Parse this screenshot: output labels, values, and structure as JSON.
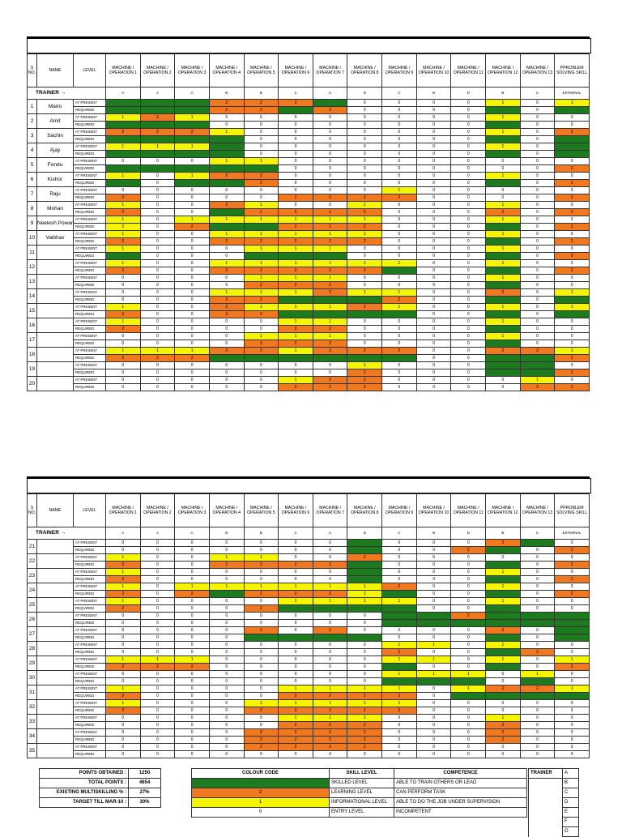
{
  "header": {
    "sno": "S NO.",
    "name": "NAME",
    "level": "LEVEL",
    "columns": [
      "MACHINE / OPERATION 1",
      "MACHINE / OPERATION 2",
      "MACHINE / OPERATION 3",
      "MACHINE / OPERATION 4",
      "MACHINE / OPERATION 5",
      "MACHINE / OPERATION 6",
      "MACHINE / OPERATION 7",
      "MACHINE / OPERATION 8",
      "MACHINE / OPERATION 9",
      "MACHINE / OPERATION 10",
      "MACHINE / OPERATION 11",
      "MACHINE / OPERATION 12",
      "MACHINE / OPERATION 13",
      "PPROBLEM SOLVING SKILL"
    ]
  },
  "trainer_row": {
    "label": "TRAINER →",
    "values": [
      "A",
      "A",
      "A",
      "B",
      "B",
      "C",
      "C",
      "D",
      "C",
      "B",
      "D",
      "B",
      "C",
      "EXTERNAL"
    ]
  },
  "level_labels": {
    "present": "AT PRESENT",
    "required": "REQUIRED"
  },
  "table1": [
    {
      "no": "1",
      "name": "Mario",
      "p": [
        "g",
        "g",
        "g",
        "o:2",
        "o:2",
        "o:2",
        "g",
        "0",
        "0",
        "0",
        "0",
        "y:1",
        "0",
        "y:1"
      ],
      "r": [
        "g",
        "g",
        "g",
        "o:2",
        "o:2",
        "g",
        "o:2",
        "0",
        "0",
        "0",
        "0",
        "g",
        "0",
        "g"
      ]
    },
    {
      "no": "2",
      "name": "Amit",
      "p": [
        "y:1",
        "o:2",
        "y:1",
        "0",
        "0",
        "0",
        "0",
        "0",
        "0",
        "0",
        "0",
        "y:1",
        "0",
        "0"
      ],
      "r": [
        "g",
        "g",
        "g",
        "0",
        "0",
        "0",
        "0",
        "0",
        "0",
        "0",
        "0",
        "g",
        "0",
        "0"
      ]
    },
    {
      "no": "3",
      "name": "Sachin",
      "p": [
        "o:2",
        "o:2",
        "o:2",
        "y:1",
        "0",
        "0",
        "0",
        "0",
        "0",
        "0",
        "0",
        "y:1",
        "0",
        "o:2"
      ],
      "r": [
        "g",
        "g",
        "g",
        "g",
        "0",
        "0",
        "0",
        "0",
        "0",
        "0",
        "0",
        "g",
        "0",
        "g"
      ]
    },
    {
      "no": "4",
      "name": "Ajay",
      "p": [
        "y:1",
        "y:1",
        "y:1",
        "g",
        "0",
        "0",
        "0",
        "0",
        "0",
        "0",
        "0",
        "y:1",
        "0",
        "g"
      ],
      "r": [
        "g",
        "g",
        "g",
        "g",
        "0",
        "0",
        "0",
        "0",
        "0",
        "0",
        "0",
        "g",
        "0",
        "g"
      ]
    },
    {
      "no": "5",
      "name": "Fondu",
      "p": [
        "0",
        "0",
        "0",
        "y:1",
        "y:1",
        "0",
        "0",
        "0",
        "0",
        "0",
        "0",
        "0",
        "0",
        "0"
      ],
      "r": [
        "g",
        "g",
        "g",
        "g",
        "g",
        "0",
        "0",
        "0",
        "0",
        "0",
        "0",
        "0",
        "0",
        "o:2"
      ]
    },
    {
      "no": "6",
      "name": "Kishor",
      "p": [
        "y:1",
        "0",
        "y:1",
        "o:2",
        "o:2",
        "0",
        "0",
        "0",
        "0",
        "0",
        "0",
        "y:1",
        "0",
        "0"
      ],
      "r": [
        "g",
        "0",
        "g",
        "g",
        "o:2",
        "0",
        "0",
        "0",
        "0",
        "0",
        "0",
        "g",
        "0",
        "o:2"
      ]
    },
    {
      "no": "7",
      "name": "Raju",
      "p": [
        "0",
        "0",
        "0",
        "0",
        "0",
        "0",
        "0",
        "0",
        "y:1",
        "0",
        "0",
        "0",
        "0",
        "0"
      ],
      "r": [
        "o:2",
        "0",
        "0",
        "0",
        "0",
        "o:2",
        "o:2",
        "o:2",
        "o:2",
        "0",
        "0",
        "0",
        "0",
        "o:2"
      ]
    },
    {
      "no": "8",
      "name": "Mohan",
      "p": [
        "y:1",
        "0",
        "0",
        "o:2",
        "y:1",
        "0",
        "0",
        "y:1",
        "0",
        "0",
        "0",
        "y:1",
        "0",
        "0"
      ],
      "r": [
        "o:2",
        "0",
        "0",
        "g",
        "o:2",
        "o:2",
        "o:2",
        "o:2",
        "0",
        "0",
        "0",
        "o:2",
        "0",
        "o:2"
      ]
    },
    {
      "no": "9",
      "name": "Neelesh Powar",
      "p": [
        "y:1",
        "0",
        "y:1",
        "y:1",
        "y:1",
        "y:1",
        "y:1",
        "y:1",
        "0",
        "0",
        "0",
        "y:1",
        "0",
        "0"
      ],
      "r": [
        "y:2",
        "0",
        "o:2",
        "g",
        "g",
        "o:2",
        "o:2",
        "o:2",
        "0",
        "0",
        "0",
        "g",
        "0",
        "o:2"
      ]
    },
    {
      "no": "10",
      "name": "Vaibhav",
      "p": [
        "y:1",
        "0",
        "0",
        "y:1",
        "y:1",
        "y:1",
        "y:1",
        "y:1",
        "0",
        "0",
        "0",
        "y:1",
        "0",
        "0"
      ],
      "r": [
        "o:2",
        "0",
        "0",
        "o:2",
        "o:2",
        "o:2",
        "o:2",
        "o:2",
        "0",
        "0",
        "0",
        "g",
        "0",
        "o:2"
      ]
    },
    {
      "no": "11",
      "name": "",
      "p": [
        "y:1",
        "0",
        "0",
        "0",
        "y:1",
        "y:1",
        "y:1",
        "0",
        "0",
        "0",
        "0",
        "y:1",
        "0",
        "0"
      ],
      "r": [
        "g",
        "0",
        "0",
        "0",
        "g",
        "g",
        "g",
        "0",
        "0",
        "0",
        "0",
        "g",
        "0",
        "o:2"
      ]
    },
    {
      "no": "12",
      "name": "",
      "p": [
        "y:1",
        "0",
        "0",
        "y:1",
        "y:1",
        "y:1",
        "y:1",
        "y:1",
        "y:1",
        "0",
        "0",
        "y:1",
        "0",
        "0"
      ],
      "r": [
        "o:2",
        "0",
        "0",
        "o:2",
        "o:2",
        "o:2",
        "o:2",
        "o:2",
        "g",
        "0",
        "0",
        "g",
        "0",
        "o:2"
      ]
    },
    {
      "no": "13",
      "name": "",
      "p": [
        "0",
        "0",
        "0",
        "0",
        "y:1",
        "y:1",
        "y:1",
        "0",
        "0",
        "0",
        "0",
        "y:1",
        "0",
        "0"
      ],
      "r": [
        "0",
        "0",
        "0",
        "0",
        "o:2",
        "o:2",
        "o:2",
        "0",
        "0",
        "0",
        "0",
        "g",
        "0",
        "0"
      ]
    },
    {
      "no": "14",
      "name": "",
      "p": [
        "0",
        "0",
        "0",
        "y:1",
        "y:1",
        "y:1",
        "o:2",
        "y:1",
        "y:1",
        "0",
        "0",
        "o:2",
        "0",
        "y:1"
      ],
      "r": [
        "0",
        "0",
        "0",
        "o:2",
        "o:2",
        "g",
        "g",
        "g",
        "o:2",
        "0",
        "0",
        "g",
        "0",
        "g"
      ]
    },
    {
      "no": "15",
      "name": "",
      "p": [
        "y:1",
        "0",
        "0",
        "o:2",
        "y:1",
        "y:1",
        "y:1",
        "o:2",
        "y:1",
        "0",
        "0",
        "y:1",
        "0",
        "y:1"
      ],
      "r": [
        "o:2",
        "0",
        "0",
        "o:2",
        "o:2",
        "g",
        "g",
        "g",
        "g",
        "0",
        "0",
        "g",
        "0",
        "g"
      ]
    },
    {
      "no": "16",
      "name": "",
      "p": [
        "y:1",
        "0",
        "0",
        "0",
        "0",
        "y:1",
        "y:1",
        "0",
        "0",
        "0",
        "0",
        "y:1",
        "0",
        "0"
      ],
      "r": [
        "o:2",
        "0",
        "0",
        "0",
        "0",
        "o:2",
        "o:2",
        "0",
        "0",
        "0",
        "0",
        "g",
        "0",
        "0"
      ]
    },
    {
      "no": "17",
      "name": "",
      "p": [
        "0",
        "0",
        "0",
        "0",
        "y:1",
        "y:1",
        "y:1",
        "0",
        "0",
        "0",
        "0",
        "y:1",
        "0",
        "0"
      ],
      "r": [
        "0",
        "0",
        "0",
        "0",
        "o:2",
        "o:2",
        "o:2",
        "0",
        "0",
        "0",
        "0",
        "g",
        "0",
        "0"
      ]
    },
    {
      "no": "18",
      "name": "",
      "p": [
        "y:1",
        "y:1",
        "y:1",
        "o:2",
        "o:2",
        "y:1",
        "o:2",
        "o:2",
        "o:2",
        "0",
        "0",
        "o:2",
        "o:2",
        "y:1"
      ],
      "r": [
        "o:2",
        "o:2",
        "o:2",
        "g",
        "g",
        "g",
        "g",
        "g",
        "g",
        "0",
        "0",
        "g",
        "g",
        "o:2"
      ]
    },
    {
      "no": "19",
      "name": "",
      "p": [
        "0",
        "0",
        "0",
        "0",
        "0",
        "0",
        "0",
        "y:1",
        "0",
        "0",
        "0",
        "g",
        "g",
        "0"
      ],
      "r": [
        "0",
        "0",
        "0",
        "0",
        "0",
        "0",
        "0",
        "o:2",
        "0",
        "0",
        "0",
        "g",
        "g",
        "o:2"
      ]
    },
    {
      "no": "20",
      "name": "",
      "p": [
        "0",
        "0",
        "0",
        "0",
        "0",
        "y:1",
        "o:2",
        "o:2",
        "0",
        "0",
        "0",
        "0",
        "y:1",
        "0"
      ],
      "r": [
        "0",
        "0",
        "0",
        "0",
        "0",
        "o:2",
        "o:2",
        "o:2",
        "0",
        "0",
        "0",
        "0",
        "o:2",
        "o:2"
      ]
    }
  ],
  "table2": [
    {
      "no": "21",
      "name": "",
      "p": [
        "0",
        "0",
        "0",
        "0",
        "0",
        "0",
        "0",
        "g",
        "0",
        "0",
        "0",
        "o:2",
        "g",
        "0"
      ],
      "r": [
        "0",
        "0",
        "0",
        "0",
        "0",
        "0",
        "0",
        "g",
        "0",
        "0",
        "o:2",
        "g",
        "0",
        "o:2"
      ]
    },
    {
      "no": "22",
      "name": "",
      "p": [
        "y:1",
        "0",
        "0",
        "y:1",
        "y:1",
        "0",
        "0",
        "o:2",
        "0",
        "0",
        "0",
        "0",
        "0",
        "0"
      ],
      "r": [
        "o:2",
        "0",
        "0",
        "o:2",
        "o:2",
        "o:2",
        "o:2",
        "g",
        "0",
        "0",
        "0",
        "g",
        "0",
        "o:2"
      ]
    },
    {
      "no": "23",
      "name": "",
      "p": [
        "y:1",
        "0",
        "0",
        "0",
        "0",
        "0",
        "0",
        "g",
        "0",
        "0",
        "0",
        "y:1",
        "0",
        "0"
      ],
      "r": [
        "o:2",
        "0",
        "0",
        "0",
        "0",
        "0",
        "0",
        "g",
        "0",
        "0",
        "0",
        "g",
        "0",
        "o:2"
      ]
    },
    {
      "no": "24",
      "name": "",
      "p": [
        "y:1",
        "0",
        "y:1",
        "y:1",
        "y:1",
        "y:1",
        "y:1",
        "y:1",
        "o:2",
        "0",
        "0",
        "y:1",
        "0",
        "0"
      ],
      "r": [
        "o:2",
        "0",
        "o:2",
        "g",
        "o:2",
        "o:2",
        "o:2",
        "y:1",
        "g",
        "0",
        "0",
        "g",
        "0",
        "o:2"
      ]
    },
    {
      "no": "25",
      "name": "",
      "p": [
        "y:1",
        "0",
        "0",
        "0",
        "0",
        "y:1",
        "y:1",
        "y:1",
        "y:1",
        "0",
        "0",
        "y:1",
        "0",
        "0"
      ],
      "r": [
        "o:2",
        "0",
        "0",
        "0",
        "o:2",
        "g",
        "g",
        "g",
        "g",
        "0",
        "0",
        "g",
        "0",
        "0"
      ]
    },
    {
      "no": "26",
      "name": "",
      "p": [
        "0",
        "0",
        "0",
        "0",
        "0",
        "0",
        "0",
        "0",
        "g",
        "g",
        "o:2",
        "g",
        "g",
        "g"
      ],
      "r": [
        "0",
        "0",
        "0",
        "0",
        "0",
        "0",
        "0",
        "0",
        "g",
        "g",
        "g",
        "g",
        "g",
        "g"
      ]
    },
    {
      "no": "27",
      "name": "",
      "p": [
        "0",
        "0",
        "0",
        "0",
        "o:2",
        "0",
        "o:2",
        "0",
        "0",
        "0",
        "0",
        "o:2",
        "0",
        "g"
      ],
      "r": [
        "0",
        "0",
        "0",
        "0",
        "g",
        "g",
        "g",
        "g",
        "0",
        "0",
        "0",
        "g",
        "0",
        "g"
      ]
    },
    {
      "no": "28",
      "name": "",
      "p": [
        "0",
        "0",
        "0",
        "0",
        "0",
        "0",
        "0",
        "0",
        "y:1",
        "y:1",
        "0",
        "y:1",
        "0",
        "0"
      ],
      "r": [
        "0",
        "0",
        "0",
        "0",
        "0",
        "0",
        "0",
        "0",
        "o:2",
        "0",
        "0",
        "g",
        "o:2",
        "0"
      ]
    },
    {
      "no": "29",
      "name": "",
      "p": [
        "y:1",
        "y:1",
        "y:1",
        "0",
        "0",
        "0",
        "0",
        "0",
        "y:1",
        "y:1",
        "0",
        "y:1",
        "0",
        "y:1"
      ],
      "r": [
        "o:2",
        "o:2",
        "o:2",
        "0",
        "0",
        "0",
        "0",
        "0",
        "g",
        "0",
        "0",
        "g",
        "0",
        "o:2"
      ]
    },
    {
      "no": "30",
      "name": "",
      "p": [
        "0",
        "0",
        "0",
        "0",
        "0",
        "0",
        "0",
        "0",
        "y:1",
        "y:1",
        "y:1",
        "0",
        "y:1",
        "0"
      ],
      "r": [
        "0",
        "0",
        "0",
        "0",
        "0",
        "0",
        "0",
        "0",
        "g",
        "g",
        "g",
        "0",
        "g",
        "0"
      ]
    },
    {
      "no": "31",
      "name": "",
      "p": [
        "y:1",
        "0",
        "0",
        "0",
        "0",
        "y:1",
        "y:1",
        "y:1",
        "y:1",
        "0",
        "y:1",
        "o:2",
        "o:2",
        "y:1"
      ],
      "r": [
        "o:2",
        "0",
        "0",
        "0",
        "0",
        "o:2",
        "o:2",
        "o:2",
        "o:2",
        "0",
        "g",
        "g",
        "g",
        "g"
      ]
    },
    {
      "no": "32",
      "name": "",
      "p": [
        "y:1",
        "0",
        "0",
        "0",
        "y:1",
        "y:1",
        "y:1",
        "y:1",
        "y:1",
        "0",
        "0",
        "0",
        "0",
        "0"
      ],
      "r": [
        "o:2",
        "0",
        "0",
        "0",
        "o:2",
        "o:2",
        "o:2",
        "o:2",
        "o:2",
        "0",
        "0",
        "0",
        "0",
        "0"
      ]
    },
    {
      "no": "33",
      "name": "",
      "p": [
        "0",
        "0",
        "0",
        "0",
        "0",
        "y:1",
        "y:1",
        "y:1",
        "0",
        "0",
        "0",
        "y:1",
        "0",
        "0"
      ],
      "r": [
        "0",
        "0",
        "0",
        "0",
        "0",
        "o:2",
        "o:2",
        "o:2",
        "0",
        "0",
        "0",
        "o:2",
        "0",
        "0"
      ]
    },
    {
      "no": "34",
      "name": "",
      "p": [
        "0",
        "0",
        "0",
        "0",
        "o:2",
        "o:2",
        "o:2",
        "o:2",
        "0",
        "0",
        "0",
        "o:2",
        "0",
        "0"
      ],
      "r": [
        "0",
        "0",
        "0",
        "0",
        "o:2",
        "o:2",
        "o:2",
        "o:2",
        "0",
        "0",
        "0",
        "o:2",
        "0",
        "0"
      ]
    },
    {
      "no": "35",
      "name": "",
      "p": [
        "0",
        "0",
        "0",
        "0",
        "o:2",
        "o:2",
        "o:2",
        "o:2",
        "0",
        "0",
        "0",
        "0",
        "0",
        "0"
      ],
      "r": [
        "0",
        "0",
        "0",
        "0",
        "0",
        "0",
        "0",
        "0",
        "0",
        "0",
        "0",
        "0",
        "0",
        "0"
      ]
    }
  ],
  "summary": [
    {
      "label": "POINTS OBTAINED :",
      "value": "1250"
    },
    {
      "label": "TOTAL POINTS :",
      "value": "4654"
    },
    {
      "label": "EXISTING MULTISKILLING % :",
      "value": "27%"
    },
    {
      "label": "TARGET TILL MAR-10 :",
      "value": "30%"
    }
  ],
  "legend": {
    "headers": {
      "colour": "COLOUR CODE",
      "skill": "SKILL LEVEL",
      "competence": "COMPETENCE"
    },
    "rows": [
      {
        "swatch": "green",
        "code": "",
        "skill": "SKILLED LEVEL",
        "competence": "ABLE TO TRAIN OTHERS OR LEAD"
      },
      {
        "swatch": "orange",
        "code": "2",
        "skill": "LEARNING LEVEL",
        "competence": "CAN PERFORM TASK"
      },
      {
        "swatch": "yellow",
        "code": "1",
        "skill": "INFORMATIONAL LEVEL",
        "competence": "ABLE TO DO THE JOB UNDER SUPERVISION"
      },
      {
        "swatch": "white",
        "code": "0",
        "skill": "ENTRY LEVEL",
        "competence": "INCOMPETENT"
      }
    ]
  },
  "trainer_key": {
    "header": "TRAINER",
    "letters": [
      "A",
      "B",
      "C",
      "D",
      "E",
      "F",
      "G"
    ]
  },
  "colors": {
    "green": "#1e7a1e",
    "orange": "#f07820",
    "yellow": "#f5f500"
  }
}
